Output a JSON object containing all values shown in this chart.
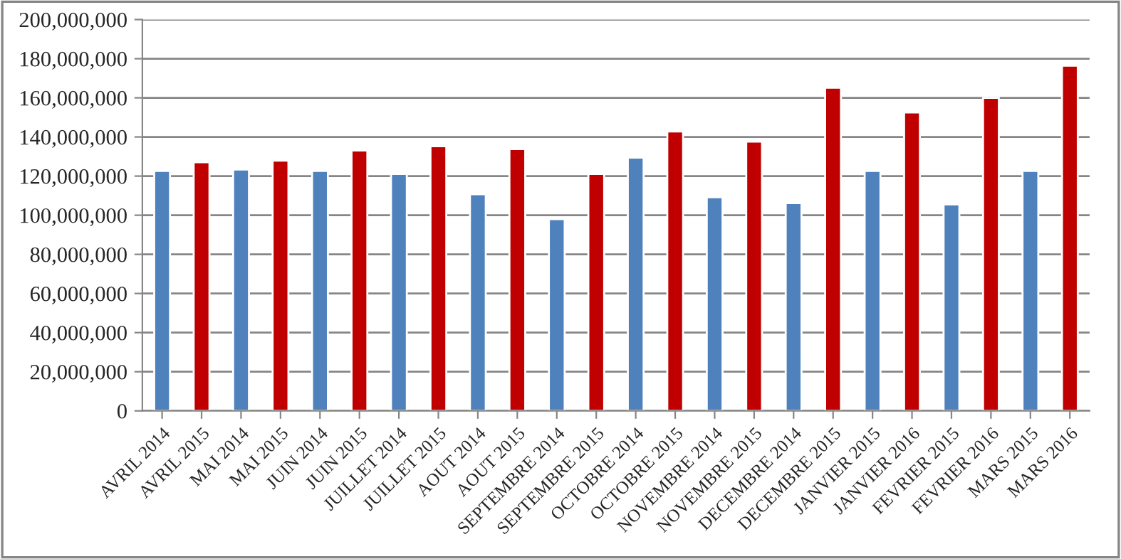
{
  "chart_data": {
    "type": "bar",
    "categories": [
      "AVRIL 2014",
      "AVRIL 2015",
      "MAI 2014",
      "MAI 2015",
      "JUIN 2014",
      "JUIN 2015",
      "JUILLET 2014",
      "JUILLET 2015",
      "AOUT 2014",
      "AOUT 2015",
      "SEPTEMBRE 2014",
      "SEPTEMBRE 2015",
      "OCTOBRE 2014",
      "OCTOBRE 2015",
      "NOVEMBRE 2014",
      "NOVEMBRE 2015",
      "DECEMBRE 2014",
      "DECEMBRE 2015",
      "JANVIER 2015",
      "JANVIER 2016",
      "FEVRIER 2015",
      "FEVRIER 2016",
      "MARS 2015",
      "MARS 2016"
    ],
    "values": [
      122600000,
      127100000,
      123400000,
      127900000,
      122600000,
      133100000,
      121100000,
      135300000,
      110700000,
      133800000,
      98000000,
      121100000,
      129400000,
      142800000,
      109200000,
      137600000,
      106200000,
      165200000,
      122600000,
      152500000,
      105500000,
      160000000,
      122600000,
      176400000
    ],
    "colors": [
      "#4f81bd",
      "#c00000",
      "#4f81bd",
      "#c00000",
      "#4f81bd",
      "#c00000",
      "#4f81bd",
      "#c00000",
      "#4f81bd",
      "#c00000",
      "#4f81bd",
      "#c00000",
      "#4f81bd",
      "#c00000",
      "#4f81bd",
      "#c00000",
      "#4f81bd",
      "#c00000",
      "#4f81bd",
      "#c00000",
      "#4f81bd",
      "#c00000",
      "#4f81bd",
      "#c00000"
    ],
    "ylim": [
      0,
      200000000
    ],
    "yticks": [
      {
        "value": 0,
        "label": "0"
      },
      {
        "value": 20000000,
        "label": "20,000,000"
      },
      {
        "value": 40000000,
        "label": "40,000,000"
      },
      {
        "value": 60000000,
        "label": "60,000,000"
      },
      {
        "value": 80000000,
        "label": "80,000,000"
      },
      {
        "value": 100000000,
        "label": "100,000,000"
      },
      {
        "value": 120000000,
        "label": "120,000,000"
      },
      {
        "value": 140000000,
        "label": "140,000,000"
      },
      {
        "value": 160000000,
        "label": "160,000,000"
      },
      {
        "value": 180000000,
        "label": "180,000,000"
      },
      {
        "value": 200000000,
        "label": "200,000,000"
      }
    ],
    "grid": "y"
  }
}
